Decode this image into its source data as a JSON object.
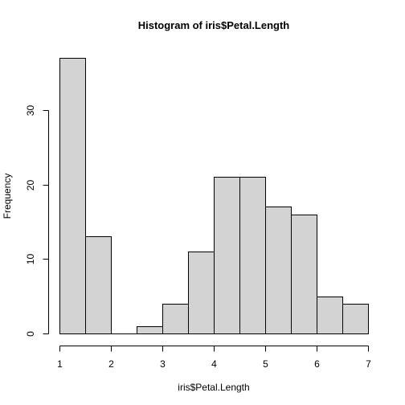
{
  "chart_data": {
    "type": "bar",
    "title": "Histogram of iris$Petal.Length",
    "xlabel": "iris$Petal.Length",
    "ylabel": "Frequency",
    "bin_edges": [
      1,
      1.5,
      2,
      2.5,
      3,
      3.5,
      4,
      4.5,
      5,
      5.5,
      6,
      6.5,
      7
    ],
    "values": [
      37,
      13,
      0,
      1,
      4,
      11,
      21,
      21,
      17,
      16,
      5,
      4
    ],
    "xlim": [
      1,
      7
    ],
    "ylim": [
      0,
      37
    ],
    "xticks": [
      1,
      2,
      3,
      4,
      5,
      6,
      7
    ],
    "yticks": [
      0,
      10,
      20,
      30
    ],
    "bar_fill": "#d3d3d3",
    "grid": false,
    "legend": "none"
  }
}
